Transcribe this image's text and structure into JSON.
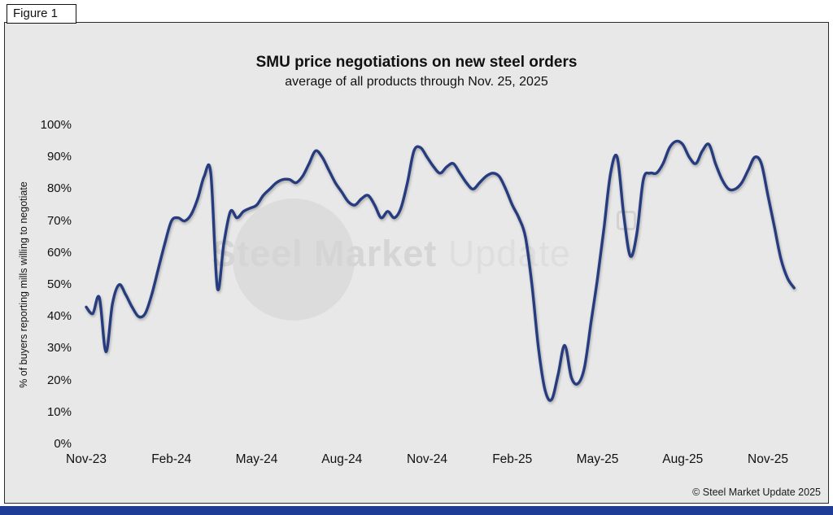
{
  "figure_label": "Figure 1",
  "chart_data": {
    "type": "line",
    "title": "SMU price negotiations on new steel orders",
    "subtitle": "average of all products through Nov. 25, 2025",
    "xlabel": "",
    "ylabel": "% of buyers reporting mills willing to negotiate",
    "ylim": [
      0,
      100
    ],
    "grid": false,
    "legend_position": "none",
    "y_tick_labels": [
      "0%",
      "10%",
      "20%",
      "30%",
      "40%",
      "50%",
      "60%",
      "70%",
      "80%",
      "90%",
      "100%"
    ],
    "x_tick_labels": [
      "Nov-23",
      "Feb-24",
      "May-24",
      "Aug-24",
      "Nov-24",
      "Feb-25",
      "May-25",
      "Aug-25",
      "Nov-25"
    ],
    "x_tick_week_indices": [
      0,
      13,
      26,
      39,
      52,
      65,
      78,
      91,
      104
    ],
    "x_unit": "weekly survey readings, Nov-23 through Nov 25, 2025",
    "series": [
      {
        "name": "% of buyers reporting mills willing to negotiate",
        "color": "#263c7f",
        "values": [
          43,
          41,
          46,
          29,
          44,
          50,
          47,
          43,
          40,
          41,
          47,
          55,
          63,
          70,
          71,
          70,
          72,
          77,
          84,
          85,
          49,
          63,
          73,
          71,
          73,
          74,
          75,
          78,
          80,
          82,
          83,
          83,
          82,
          84,
          88,
          92,
          90,
          86,
          82,
          79,
          76,
          75,
          77,
          78,
          75,
          71,
          73,
          71,
          74,
          82,
          92,
          93,
          90,
          87,
          85,
          87,
          88,
          85,
          82,
          80,
          82,
          84,
          85,
          84,
          80,
          75,
          71,
          65,
          50,
          30,
          17,
          14,
          22,
          31,
          21,
          19,
          24,
          38,
          52,
          68,
          85,
          90,
          72,
          59,
          66,
          83,
          85,
          85,
          88,
          93,
          95,
          94,
          90,
          88,
          92,
          94,
          88,
          83,
          80,
          80,
          82,
          86,
          90,
          88,
          78,
          68,
          58,
          52,
          49
        ]
      }
    ]
  },
  "watermark": {
    "text_bold": "Steel Market",
    "text_light": "Update"
  },
  "footer": {
    "copyright": "© Steel Market Update 2025"
  },
  "colors": {
    "panel_background": "#e8e8e8",
    "line": "#263c7f",
    "bottom_bar": "#1e3c96",
    "border": "#2a2a2a"
  }
}
